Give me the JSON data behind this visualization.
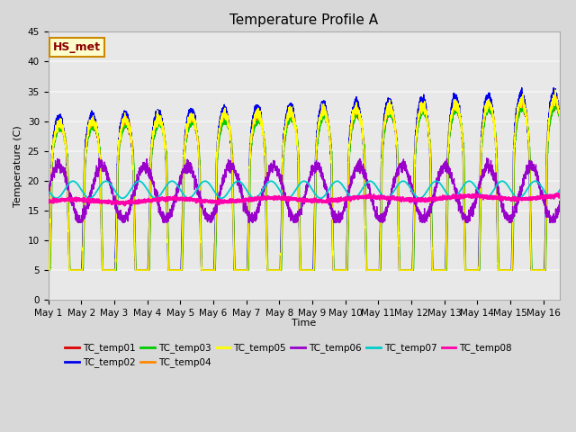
{
  "title": "Temperature Profile A",
  "xlabel": "Time",
  "ylabel": "Temperature (C)",
  "ylim": [
    0,
    45
  ],
  "annotation": "HS_met",
  "series_names": [
    "TC_temp01",
    "TC_temp02",
    "TC_temp03",
    "TC_temp04",
    "TC_temp05",
    "TC_temp06",
    "TC_temp07",
    "TC_temp08"
  ],
  "series_colors": [
    "#dd0000",
    "#0000ee",
    "#00cc00",
    "#ff8800",
    "#ffff00",
    "#9900cc",
    "#00cccc",
    "#ff00aa"
  ],
  "series_linewidths": [
    1.0,
    1.0,
    1.0,
    1.0,
    1.0,
    1.0,
    1.3,
    1.5
  ],
  "bg_color": "#d8d8d8",
  "plot_bg_color": "#e8e8e8",
  "grid_color": "#f5f5f5",
  "tick_labels": [
    "May 1",
    "May 2",
    "May 3",
    "May 4",
    "May 5",
    "May 6",
    "May 7",
    "May 8",
    "May 9",
    "May 10",
    "May 11",
    "May 12",
    "May 13",
    "May 14",
    "May 15",
    "May 16"
  ],
  "n_days": 16,
  "pts_per_day": 240
}
